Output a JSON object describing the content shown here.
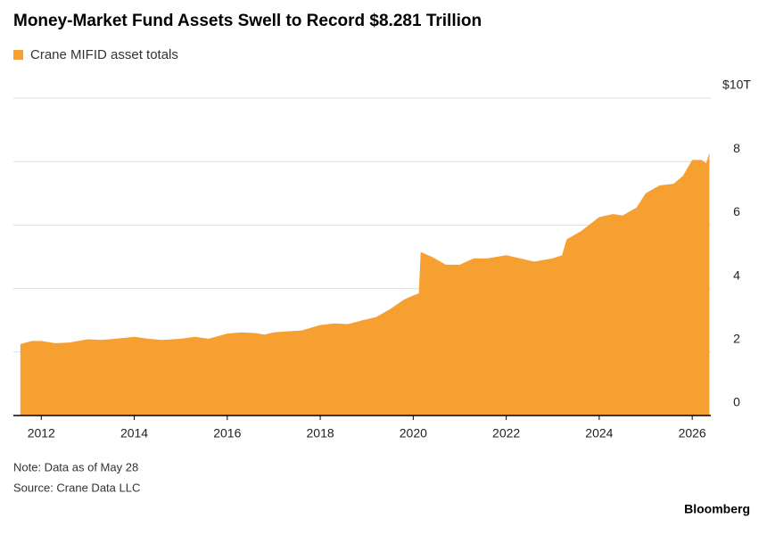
{
  "chart_data": {
    "type": "area",
    "title": "Money-Market Fund Assets Swell to Record $8.281 Trillion",
    "x": [
      2011.55,
      2011.8,
      2012.0,
      2012.3,
      2012.6,
      2013.0,
      2013.3,
      2013.6,
      2014.0,
      2014.3,
      2014.6,
      2015.0,
      2015.3,
      2015.6,
      2016.0,
      2016.3,
      2016.6,
      2016.8,
      2017.0,
      2017.3,
      2017.6,
      2018.0,
      2018.3,
      2018.6,
      2018.9,
      2019.2,
      2019.5,
      2019.8,
      2020.0,
      2020.12,
      2020.16,
      2020.4,
      2020.7,
      2021.0,
      2021.3,
      2021.6,
      2022.0,
      2022.3,
      2022.6,
      2023.0,
      2023.2,
      2023.3,
      2023.6,
      2024.0,
      2024.3,
      2024.5,
      2024.8,
      2025.0,
      2025.3,
      2025.6,
      2025.8,
      2026.0,
      2026.2,
      2026.3,
      2026.37
    ],
    "series": [
      {
        "name": "Crane MIFID asset totals",
        "color": "#f7a032",
        "values": [
          2.25,
          2.35,
          2.35,
          2.28,
          2.3,
          2.4,
          2.38,
          2.42,
          2.48,
          2.42,
          2.38,
          2.42,
          2.48,
          2.42,
          2.58,
          2.62,
          2.6,
          2.55,
          2.62,
          2.65,
          2.68,
          2.85,
          2.9,
          2.88,
          3.0,
          3.1,
          3.35,
          3.65,
          3.78,
          3.85,
          5.15,
          5.0,
          4.75,
          4.75,
          4.95,
          4.95,
          5.05,
          4.95,
          4.85,
          4.95,
          5.05,
          5.55,
          5.8,
          6.25,
          6.35,
          6.3,
          6.55,
          7.0,
          7.25,
          7.3,
          7.55,
          8.05,
          8.05,
          7.95,
          8.281
        ]
      }
    ],
    "xlim": [
      2011.4,
      2026.4
    ],
    "xticks": [
      2012,
      2014,
      2016,
      2018,
      2020,
      2022,
      2024,
      2026
    ],
    "ylim": [
      0,
      10
    ],
    "yticks": [
      0,
      2,
      4,
      6,
      8,
      {
        "value": 10,
        "label": "$10T"
      }
    ],
    "grid": true,
    "note": "Note: Data as of May 28",
    "source": "Source: Crane Data LLC",
    "credit": "Bloomberg"
  }
}
